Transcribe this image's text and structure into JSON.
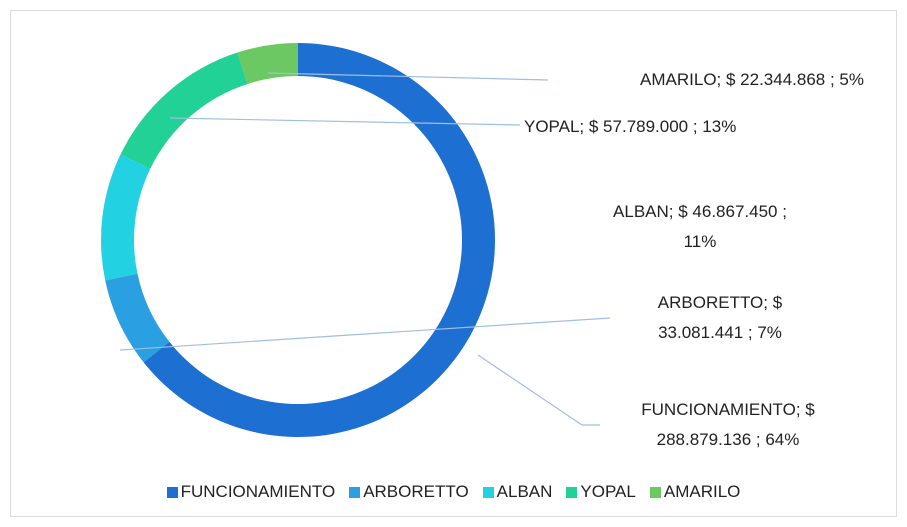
{
  "chart_data": {
    "type": "donut",
    "categories": [
      "FUNCIONAMIENTO",
      "ARBORETTO",
      "ALBAN",
      "YOPAL",
      "AMARILO"
    ],
    "values": [
      288879136,
      33081441,
      46867450,
      57789000,
      22344868
    ],
    "value_labels": [
      "FUNCIONAMIENTO; $ 288.879.136 ; 64%",
      "ARBORETTO; $ 33.081.441 ; 7%",
      "ALBAN; $ 46.867.450 ; 11%",
      "YOPAL;  $ 57.789.000 ; 13%",
      "AMARILO;  $ 22.344.868 ; 5%"
    ],
    "colors": [
      "#1e6fd2",
      "#2aa0e3",
      "#22d2e2",
      "#22d195",
      "#6cc862"
    ],
    "legend": "bottom"
  }
}
